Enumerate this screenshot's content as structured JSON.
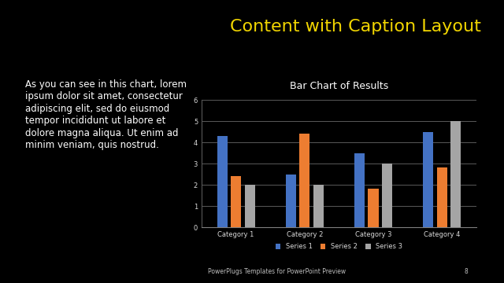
{
  "slide": {
    "title": "Content with Caption Layout",
    "caption": "As you can see in this chart, lorem ipsum dolor sit amet, consectetur adipiscing elit, sed do eiusmod tempor incididunt ut labore et dolore magna aliqua. Ut enim ad minim veniam, quis nostrud.",
    "footer": "PowerPlugs Templates for PowerPoint Preview",
    "page": 8
  },
  "chart_data": {
    "type": "bar",
    "title": "Bar Chart of Results",
    "categories": [
      "Category 1",
      "Category 2",
      "Category 3",
      "Category 4"
    ],
    "series": [
      {
        "name": "Series 1",
        "color": "#4472c4",
        "values": [
          4.3,
          2.5,
          3.5,
          4.5
        ]
      },
      {
        "name": "Series 2",
        "color": "#ed7d31",
        "values": [
          2.4,
          4.4,
          1.8,
          2.8
        ]
      },
      {
        "name": "Series 3",
        "color": "#a5a5a5",
        "values": [
          2,
          2,
          3,
          5
        ]
      }
    ],
    "ylim": [
      0,
      6
    ],
    "yticks": [
      0,
      1,
      2,
      3,
      4,
      5,
      6
    ],
    "grid": true,
    "legend": "lower center"
  }
}
